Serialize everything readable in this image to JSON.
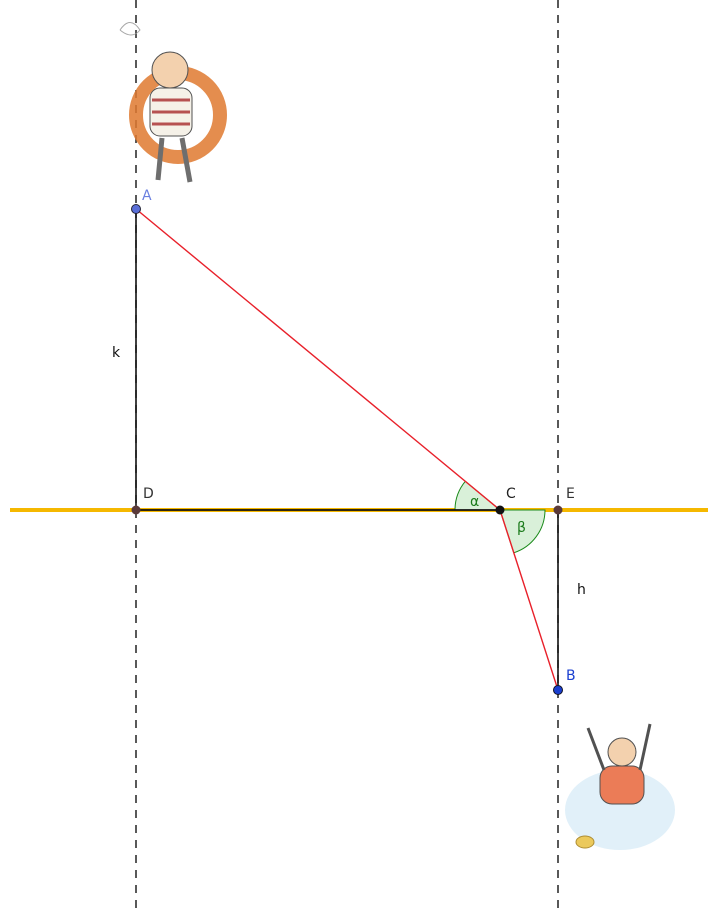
{
  "points": [
    {
      "label": "A"
    },
    {
      "label": "B"
    },
    {
      "label": "C"
    },
    {
      "label": "D"
    },
    {
      "label": "E"
    }
  ],
  "segments": [
    {
      "label": "k"
    },
    {
      "label": "h"
    }
  ],
  "angles": [
    {
      "label": "α"
    },
    {
      "label": "β"
    }
  ]
}
